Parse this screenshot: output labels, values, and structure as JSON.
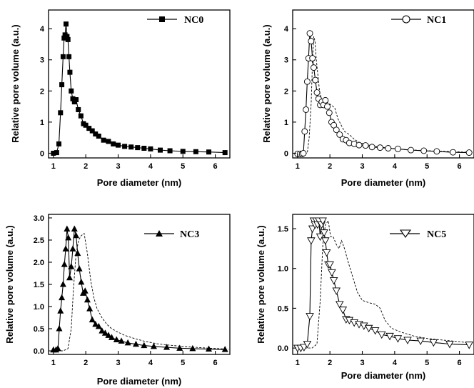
{
  "chart_data": [
    {
      "type": "line",
      "xlabel": "Pore diameter (nm)",
      "ylabel": "Relative pore volume (a.u.)",
      "xlim": [
        0.85,
        6.45
      ],
      "ylim": [
        -0.15,
        4.6
      ],
      "xticks": [
        1,
        2,
        3,
        4,
        5,
        6
      ],
      "yticks": [
        0,
        1,
        2,
        3,
        4
      ],
      "legend_position": "top-right",
      "series": [
        {
          "name": "NC0",
          "marker": "filled-square",
          "line_style": "solid",
          "x": [
            1.0,
            1.1,
            1.17,
            1.22,
            1.26,
            1.3,
            1.33,
            1.36,
            1.39,
            1.42,
            1.45,
            1.48,
            1.51,
            1.55,
            1.6,
            1.65,
            1.7,
            1.77,
            1.85,
            1.93,
            2.0,
            2.1,
            2.2,
            2.3,
            2.4,
            2.55,
            2.7,
            2.85,
            3.0,
            3.2,
            3.4,
            3.6,
            3.8,
            4.0,
            4.3,
            4.6,
            5.0,
            5.4,
            5.8,
            6.3
          ],
          "y": [
            0.0,
            0.02,
            0.3,
            1.3,
            2.2,
            3.1,
            3.7,
            3.8,
            4.15,
            3.75,
            3.65,
            3.1,
            2.6,
            2.0,
            1.75,
            1.65,
            1.72,
            1.4,
            1.2,
            0.95,
            0.9,
            0.8,
            0.72,
            0.62,
            0.55,
            0.42,
            0.38,
            0.3,
            0.26,
            0.22,
            0.2,
            0.18,
            0.16,
            0.14,
            0.1,
            0.08,
            0.06,
            0.05,
            0.04,
            0.02
          ]
        }
      ],
      "dashed_reference": false
    },
    {
      "type": "line",
      "xlabel": "Pore diameter (nm)",
      "ylabel": "Relative pore volume (a.u.)",
      "xlim": [
        0.85,
        6.45
      ],
      "ylim": [
        -0.15,
        4.6
      ],
      "xticks": [
        1,
        2,
        3,
        4,
        5,
        6
      ],
      "yticks": [
        0,
        1,
        2,
        3,
        4
      ],
      "legend_position": "top-right",
      "series": [
        {
          "name": "NC1",
          "marker": "open-circle",
          "line_style": "solid",
          "x": [
            1.0,
            1.08,
            1.14,
            1.18,
            1.22,
            1.26,
            1.3,
            1.34,
            1.38,
            1.42,
            1.46,
            1.5,
            1.55,
            1.6,
            1.65,
            1.7,
            1.75,
            1.8,
            1.86,
            1.92,
            1.98,
            2.05,
            2.12,
            2.2,
            2.3,
            2.4,
            2.5,
            2.6,
            2.75,
            2.9,
            3.1,
            3.3,
            3.55,
            3.8,
            4.1,
            4.5,
            4.9,
            5.3,
            5.8,
            6.3
          ],
          "y": [
            -0.02,
            -0.02,
            -0.02,
            0.0,
            0.7,
            1.4,
            2.3,
            3.05,
            3.85,
            3.6,
            3.05,
            2.75,
            2.35,
            1.95,
            1.75,
            1.55,
            1.65,
            1.55,
            1.7,
            1.5,
            1.3,
            1.0,
            0.9,
            0.75,
            0.6,
            0.45,
            0.42,
            0.33,
            0.3,
            0.26,
            0.25,
            0.2,
            0.18,
            0.16,
            0.14,
            0.1,
            0.08,
            0.06,
            0.03,
            0.02
          ]
        },
        {
          "name": "",
          "marker": "none",
          "line_style": "dashed",
          "x": [
            1.0,
            1.2,
            1.3,
            1.36,
            1.42,
            1.46,
            1.5,
            1.54,
            1.58,
            1.62,
            1.68,
            1.75,
            1.85,
            1.95,
            2.05,
            2.15,
            2.25,
            2.35,
            2.45,
            2.6,
            2.75,
            2.9,
            3.1,
            3.4,
            3.8,
            4.3,
            5.0,
            5.8,
            6.4
          ],
          "y": [
            -0.02,
            -0.02,
            0.0,
            0.5,
            1.6,
            2.9,
            3.75,
            3.6,
            3.0,
            2.6,
            2.0,
            1.7,
            1.7,
            1.6,
            1.55,
            1.45,
            1.1,
            0.9,
            0.7,
            0.6,
            0.45,
            0.35,
            0.28,
            0.22,
            0.17,
            0.12,
            0.08,
            0.05,
            0.03
          ]
        }
      ],
      "dashed_reference": true
    },
    {
      "type": "line",
      "xlabel": "Pore diameter (nm)",
      "ylabel": "Relative pore volume (a.u.)",
      "xlim": [
        0.85,
        6.45
      ],
      "ylim": [
        -0.08,
        3.08
      ],
      "xticks": [
        1,
        2,
        3,
        4,
        5,
        6
      ],
      "yticks": [
        0.0,
        0.5,
        1.0,
        1.5,
        2.0,
        2.5,
        3.0
      ],
      "legend_position": "top-right",
      "series": [
        {
          "name": "NC3",
          "marker": "filled-triangle-up",
          "line_style": "solid",
          "x": [
            1.0,
            1.08,
            1.14,
            1.18,
            1.22,
            1.26,
            1.3,
            1.34,
            1.38,
            1.42,
            1.46,
            1.5,
            1.55,
            1.6,
            1.65,
            1.7,
            1.75,
            1.8,
            1.86,
            1.92,
            1.98,
            2.05,
            2.12,
            2.2,
            2.3,
            2.4,
            2.5,
            2.6,
            2.7,
            2.8,
            2.95,
            3.1,
            3.3,
            3.55,
            3.8,
            4.1,
            4.5,
            4.9,
            5.3,
            5.8,
            6.3
          ],
          "y": [
            0.02,
            0.02,
            0.05,
            0.5,
            0.9,
            1.2,
            1.5,
            1.95,
            2.3,
            2.75,
            2.55,
            1.65,
            1.9,
            2.3,
            2.75,
            2.6,
            2.2,
            1.85,
            1.55,
            1.3,
            1.35,
            1.15,
            0.95,
            0.7,
            0.6,
            0.55,
            0.45,
            0.4,
            0.35,
            0.3,
            0.25,
            0.22,
            0.18,
            0.15,
            0.12,
            0.1,
            0.08,
            0.06,
            0.05,
            0.04,
            0.03
          ]
        },
        {
          "name": "",
          "marker": "none",
          "line_style": "dashed",
          "x": [
            1.0,
            1.3,
            1.45,
            1.55,
            1.62,
            1.7,
            1.78,
            1.86,
            1.95,
            2.05,
            2.15,
            2.25,
            2.35,
            2.5,
            2.65,
            2.8,
            3.0,
            3.2,
            3.5,
            3.8,
            4.2,
            4.7,
            5.2,
            5.8,
            6.4
          ],
          "y": [
            0.0,
            0.0,
            0.05,
            0.5,
            1.4,
            2.2,
            2.5,
            2.6,
            2.65,
            2.2,
            1.6,
            1.2,
            0.95,
            0.75,
            0.6,
            0.5,
            0.42,
            0.35,
            0.28,
            0.22,
            0.16,
            0.12,
            0.09,
            0.06,
            0.04
          ]
        }
      ],
      "dashed_reference": true
    },
    {
      "type": "line",
      "xlabel": "Pore diameter (nm)",
      "ylabel": "Relative pore volume (a.u.)",
      "xlim": [
        0.85,
        6.45
      ],
      "ylim": [
        -0.08,
        1.68
      ],
      "xticks": [
        1,
        2,
        3,
        4,
        5,
        6
      ],
      "yticks": [
        0.0,
        0.5,
        1.0,
        1.5
      ],
      "legend_position": "top-right",
      "series": [
        {
          "name": "NC5",
          "marker": "open-triangle-down",
          "line_style": "solid",
          "x": [
            1.0,
            1.1,
            1.2,
            1.3,
            1.38,
            1.42,
            1.46,
            1.5,
            1.54,
            1.58,
            1.62,
            1.66,
            1.7,
            1.74,
            1.78,
            1.82,
            1.86,
            1.9,
            1.95,
            2.0,
            2.06,
            2.12,
            2.2,
            2.3,
            2.4,
            2.5,
            2.6,
            2.75,
            2.9,
            3.05,
            3.2,
            3.4,
            3.6,
            3.85,
            4.1,
            4.4,
            4.8,
            5.2,
            5.7,
            6.3
          ],
          "y": [
            0.0,
            0.0,
            0.01,
            0.05,
            0.4,
            1.35,
            1.5,
            1.6,
            1.55,
            1.6,
            1.55,
            1.6,
            1.4,
            1.55,
            1.6,
            1.45,
            1.35,
            1.2,
            1.05,
            1.05,
            0.95,
            0.85,
            0.72,
            0.55,
            0.48,
            0.36,
            0.35,
            0.32,
            0.3,
            0.28,
            0.25,
            0.22,
            0.17,
            0.15,
            0.12,
            0.1,
            0.09,
            0.07,
            0.05,
            0.04
          ]
        },
        {
          "name": "",
          "marker": "none",
          "line_style": "dashed",
          "x": [
            1.0,
            1.45,
            1.6,
            1.7,
            1.78,
            1.86,
            1.95,
            2.02,
            2.1,
            2.2,
            2.28,
            2.36,
            2.45,
            2.55,
            2.7,
            2.85,
            3.0,
            3.2,
            3.4,
            3.55,
            3.7,
            3.9,
            4.2,
            4.6,
            5.0,
            5.5,
            6.0,
            6.4
          ],
          "y": [
            0.0,
            0.0,
            0.05,
            0.6,
            1.3,
            1.55,
            1.6,
            1.4,
            1.4,
            1.3,
            1.25,
            1.35,
            1.25,
            1.1,
            0.9,
            0.7,
            0.6,
            0.57,
            0.55,
            0.5,
            0.35,
            0.25,
            0.2,
            0.15,
            0.12,
            0.1,
            0.08,
            0.06
          ]
        }
      ],
      "dashed_reference": true
    }
  ]
}
